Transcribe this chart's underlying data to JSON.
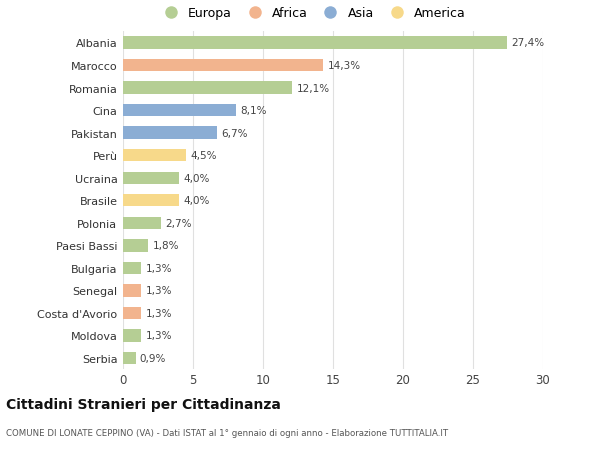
{
  "countries": [
    "Albania",
    "Marocco",
    "Romania",
    "Cina",
    "Pakistan",
    "Perù",
    "Ucraina",
    "Brasile",
    "Polonia",
    "Paesi Bassi",
    "Bulgaria",
    "Senegal",
    "Costa d'Avorio",
    "Moldova",
    "Serbia"
  ],
  "values": [
    27.4,
    14.3,
    12.1,
    8.1,
    6.7,
    4.5,
    4.0,
    4.0,
    2.7,
    1.8,
    1.3,
    1.3,
    1.3,
    1.3,
    0.9
  ],
  "labels": [
    "27,4%",
    "14,3%",
    "12,1%",
    "8,1%",
    "6,7%",
    "4,5%",
    "4,0%",
    "4,0%",
    "2,7%",
    "1,8%",
    "1,3%",
    "1,3%",
    "1,3%",
    "1,3%",
    "0,9%"
  ],
  "continents": [
    "Europa",
    "Africa",
    "Europa",
    "Asia",
    "Asia",
    "America",
    "Europa",
    "America",
    "Europa",
    "Europa",
    "Europa",
    "Africa",
    "Africa",
    "Europa",
    "Europa"
  ],
  "colors": {
    "Europa": "#b5ce94",
    "Africa": "#f2b48e",
    "Asia": "#8badd4",
    "America": "#f7d98a"
  },
  "legend_order": [
    "Europa",
    "Africa",
    "Asia",
    "America"
  ],
  "title": "Cittadini Stranieri per Cittadinanza",
  "subtitle": "COMUNE DI LONATE CEPPINO (VA) - Dati ISTAT al 1° gennaio di ogni anno - Elaborazione TUTTITALIA.IT",
  "xlim": [
    0,
    30
  ],
  "xticks": [
    0,
    5,
    10,
    15,
    20,
    25,
    30
  ],
  "background_color": "#ffffff",
  "grid_color": "#e0e0e0",
  "bar_height": 0.55
}
